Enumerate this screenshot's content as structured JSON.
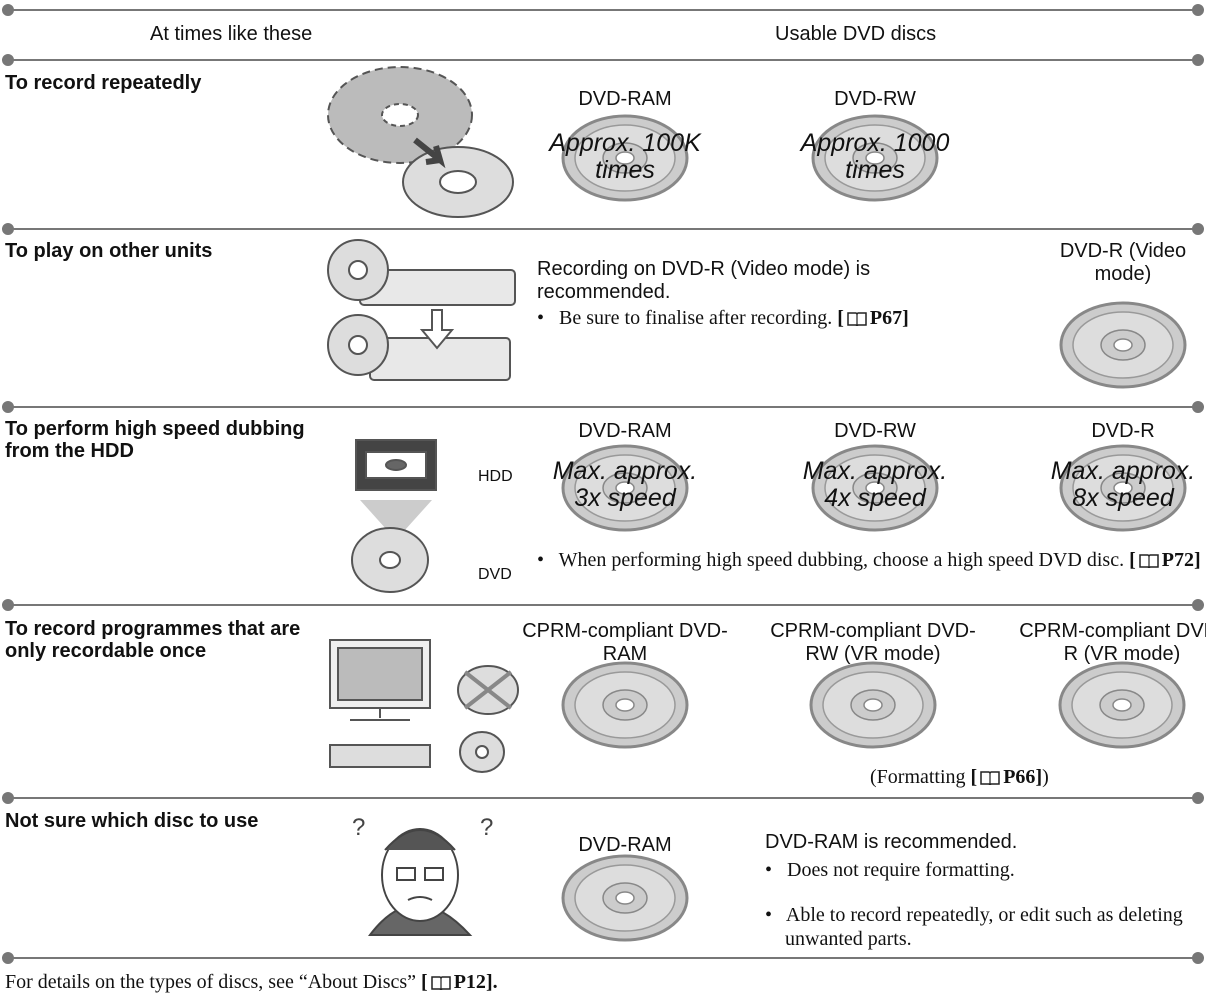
{
  "header": {
    "col1": "At times like these",
    "col2": "Usable DVD discs"
  },
  "rows": [
    {
      "situation": "To record repeatedly",
      "discs": [
        {
          "name": "DVD-RAM",
          "note": "Approx. 100K times"
        },
        {
          "name": "DVD-RW",
          "note": "Approx. 1000 times"
        }
      ]
    },
    {
      "situation": "To play on other units",
      "text": "Recording on DVD-R (Video mode) is recommended.",
      "bullets": [
        {
          "text": "Be sure to finalise after recording.",
          "ref": {
            "open": "[",
            "page": "P67",
            "close": "]"
          }
        }
      ],
      "discs": [
        {
          "name": "DVD-R (Video mode)"
        }
      ]
    },
    {
      "situation": "To perform high speed dubbing from the HDD",
      "labels": [
        "HDD",
        "DVD"
      ],
      "discs": [
        {
          "name": "DVD-RAM",
          "note": "Max. approx. 3x speed"
        },
        {
          "name": "DVD-RW",
          "note": "Max. approx. 4x speed"
        },
        {
          "name": "DVD-R",
          "note": "Max. approx. 8x speed"
        }
      ],
      "bullets": [
        {
          "text": "When performing high speed dubbing, choose a high speed DVD disc.",
          "ref": {
            "open": "[",
            "page": "P72",
            "close": "]"
          }
        }
      ]
    },
    {
      "situation": "To record programmes that are only recordable once",
      "discs": [
        {
          "name": "CPRM-compliant DVD-RAM"
        },
        {
          "name": "CPRM-compliant DVD-RW (VR mode)"
        },
        {
          "name": "CPRM-compliant DVD-R (VR mode)"
        }
      ],
      "note": {
        "before": "(Formatting",
        "ref": {
          "open": "[",
          "page": "P66",
          "close": "]"
        },
        "after": ")"
      }
    },
    {
      "situation": "Not sure which disc to use",
      "discs": [
        {
          "name": "DVD-RAM"
        }
      ],
      "text": "DVD-RAM is recommended.",
      "bullets": [
        {
          "text": "Does not require formatting."
        },
        {
          "text": "Able to record repeatedly, or edit such as deleting unwanted parts."
        }
      ]
    }
  ],
  "footer": {
    "text": "For details on the types of discs, see “About Discs”",
    "ref": {
      "open": "[",
      "page": "P12",
      "close": "]."
    }
  }
}
